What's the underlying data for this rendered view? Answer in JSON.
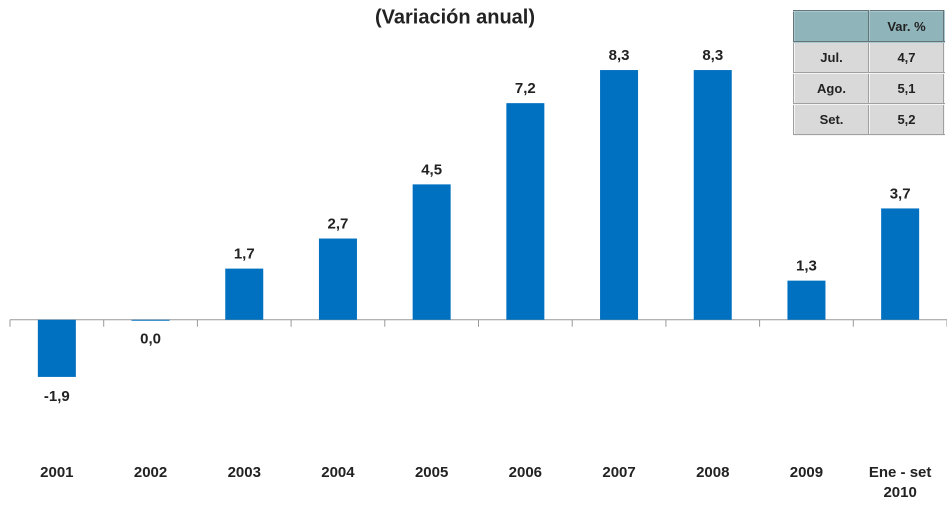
{
  "chart_data": {
    "type": "bar",
    "title": "(Variación anual)",
    "categories": [
      "2001",
      "2002",
      "2003",
      "2004",
      "2005",
      "2006",
      "2007",
      "2008",
      "2009",
      "Ene - set 2010"
    ],
    "values": [
      -1.9,
      0.0,
      1.7,
      2.7,
      4.5,
      7.2,
      8.3,
      8.3,
      1.3,
      3.7
    ],
    "value_labels": [
      "-1,9",
      "0,0",
      "1,7",
      "2,7",
      "4,5",
      "7,2",
      "8,3",
      "8,3",
      "1,3",
      "3,7"
    ],
    "color": "#0070c0",
    "ylim": [
      -3,
      9
    ]
  },
  "table": {
    "header": "Var. %",
    "rows": [
      [
        "Jul.",
        "4,7"
      ],
      [
        "Ago.",
        "5,1"
      ],
      [
        "Set.",
        "5,2"
      ]
    ]
  }
}
